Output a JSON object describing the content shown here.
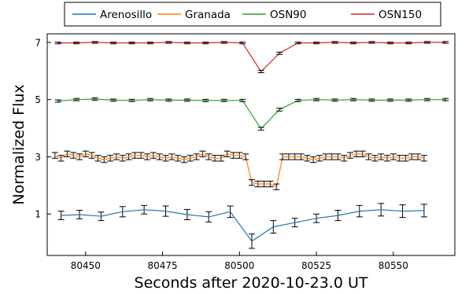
{
  "chart_data": {
    "type": "line",
    "xlabel": "Seconds after 2020-10-23.0 UT",
    "ylabel": "Normalized Flux",
    "xlim": [
      80437.5,
      80570
    ],
    "ylim": [
      -0.45,
      7.3
    ],
    "xticks": [
      80450,
      80475,
      80500,
      80525,
      80550
    ],
    "yticks": [
      1,
      3,
      5,
      7
    ],
    "grid": false,
    "legend_position": "top, horizontal, outside plot",
    "series": [
      {
        "name": "Arenosillo",
        "color": "#1f77b4",
        "x": [
          80442,
          80448,
          80455,
          80462,
          80469,
          80476,
          80483,
          80490,
          80497,
          80504,
          80511,
          80518,
          80525,
          80532,
          80539,
          80546,
          80553,
          80560
        ],
        "y": [
          0.95,
          0.98,
          0.92,
          1.08,
          1.15,
          1.1,
          0.98,
          0.9,
          1.08,
          0.05,
          0.55,
          0.7,
          0.85,
          0.95,
          1.1,
          1.15,
          1.1,
          1.12
        ],
        "err": [
          0.15,
          0.15,
          0.15,
          0.18,
          0.15,
          0.18,
          0.18,
          0.18,
          0.2,
          0.25,
          0.22,
          0.15,
          0.15,
          0.18,
          0.2,
          0.22,
          0.22,
          0.22
        ]
      },
      {
        "name": "Granada",
        "color": "#ff7f0e",
        "x": [
          80440,
          80442,
          80444,
          80446,
          80448,
          80450,
          80452,
          80454,
          80456,
          80458,
          80460,
          80462,
          80464,
          80466,
          80468,
          80470,
          80472,
          80474,
          80476,
          80478,
          80480,
          80482,
          80484,
          80486,
          80488,
          80490,
          80492,
          80494,
          80496,
          80498,
          80500,
          80502,
          80504,
          80506,
          80508,
          80510,
          80512,
          80514,
          80516,
          80518,
          80520,
          80522,
          80524,
          80526,
          80528,
          80530,
          80532,
          80534,
          80536,
          80538,
          80540,
          80542,
          80544,
          80546,
          80548,
          80550,
          80552,
          80554,
          80556,
          80558,
          80560
        ],
        "y": [
          3.05,
          2.95,
          3.1,
          3.05,
          3.0,
          3.1,
          3.05,
          2.95,
          2.9,
          2.95,
          3.0,
          2.95,
          3.0,
          3.05,
          3.05,
          3.0,
          3.05,
          3.0,
          2.95,
          3.0,
          2.95,
          2.9,
          2.95,
          3.0,
          3.1,
          3.0,
          2.95,
          2.95,
          3.1,
          3.05,
          3.05,
          3.0,
          2.1,
          2.05,
          2.05,
          2.05,
          1.95,
          3.0,
          3.0,
          3.0,
          3.0,
          2.95,
          2.9,
          2.95,
          3.0,
          3.0,
          3.0,
          2.95,
          3.05,
          3.1,
          3.1,
          3.0,
          2.95,
          3.0,
          2.95,
          3.0,
          2.95,
          2.95,
          3.0,
          3.0,
          2.95
        ],
        "err": [
          0.1,
          0.1,
          0.1,
          0.1,
          0.1,
          0.1,
          0.1,
          0.1,
          0.1,
          0.1,
          0.1,
          0.1,
          0.1,
          0.1,
          0.1,
          0.1,
          0.1,
          0.1,
          0.1,
          0.1,
          0.1,
          0.1,
          0.1,
          0.1,
          0.1,
          0.1,
          0.1,
          0.1,
          0.1,
          0.1,
          0.1,
          0.1,
          0.1,
          0.1,
          0.1,
          0.1,
          0.1,
          0.1,
          0.1,
          0.1,
          0.1,
          0.1,
          0.1,
          0.1,
          0.1,
          0.1,
          0.1,
          0.1,
          0.1,
          0.1,
          0.1,
          0.1,
          0.1,
          0.1,
          0.1,
          0.1,
          0.1,
          0.1,
          0.1,
          0.1,
          0.1
        ]
      },
      {
        "name": "OSN90",
        "color": "#2ca02c",
        "x": [
          80441,
          80447,
          80453,
          80459,
          80465,
          80471,
          80477,
          80483,
          80489,
          80495,
          80501,
          80507,
          80513,
          80519,
          80525,
          80531,
          80537,
          80543,
          80549,
          80555,
          80561,
          80567
        ],
        "y": [
          4.95,
          5.0,
          5.02,
          4.98,
          4.97,
          5.0,
          4.98,
          4.98,
          4.97,
          4.97,
          4.97,
          3.98,
          4.65,
          4.97,
          5.0,
          4.98,
          5.0,
          4.98,
          4.98,
          4.98,
          5.0,
          5.0
        ],
        "err": [
          0.04,
          0.04,
          0.04,
          0.04,
          0.04,
          0.04,
          0.04,
          0.04,
          0.04,
          0.04,
          0.04,
          0.05,
          0.05,
          0.04,
          0.04,
          0.04,
          0.04,
          0.04,
          0.04,
          0.04,
          0.04,
          0.04
        ]
      },
      {
        "name": "OSN150",
        "color": "#d62728",
        "x": [
          80441,
          80447,
          80453,
          80459,
          80465,
          80471,
          80477,
          80483,
          80489,
          80495,
          80501,
          80507,
          80513,
          80519,
          80525,
          80531,
          80537,
          80543,
          80549,
          80555,
          80561,
          80567
        ],
        "y": [
          6.98,
          6.98,
          7.0,
          6.98,
          6.98,
          6.98,
          7.0,
          6.98,
          6.98,
          7.0,
          6.98,
          5.98,
          6.62,
          6.98,
          6.98,
          7.0,
          6.98,
          7.0,
          6.98,
          6.98,
          7.0,
          7.0
        ],
        "err": [
          0.03,
          0.03,
          0.03,
          0.03,
          0.03,
          0.03,
          0.03,
          0.03,
          0.03,
          0.03,
          0.03,
          0.04,
          0.04,
          0.03,
          0.03,
          0.03,
          0.03,
          0.03,
          0.03,
          0.03,
          0.03,
          0.03
        ]
      }
    ]
  }
}
